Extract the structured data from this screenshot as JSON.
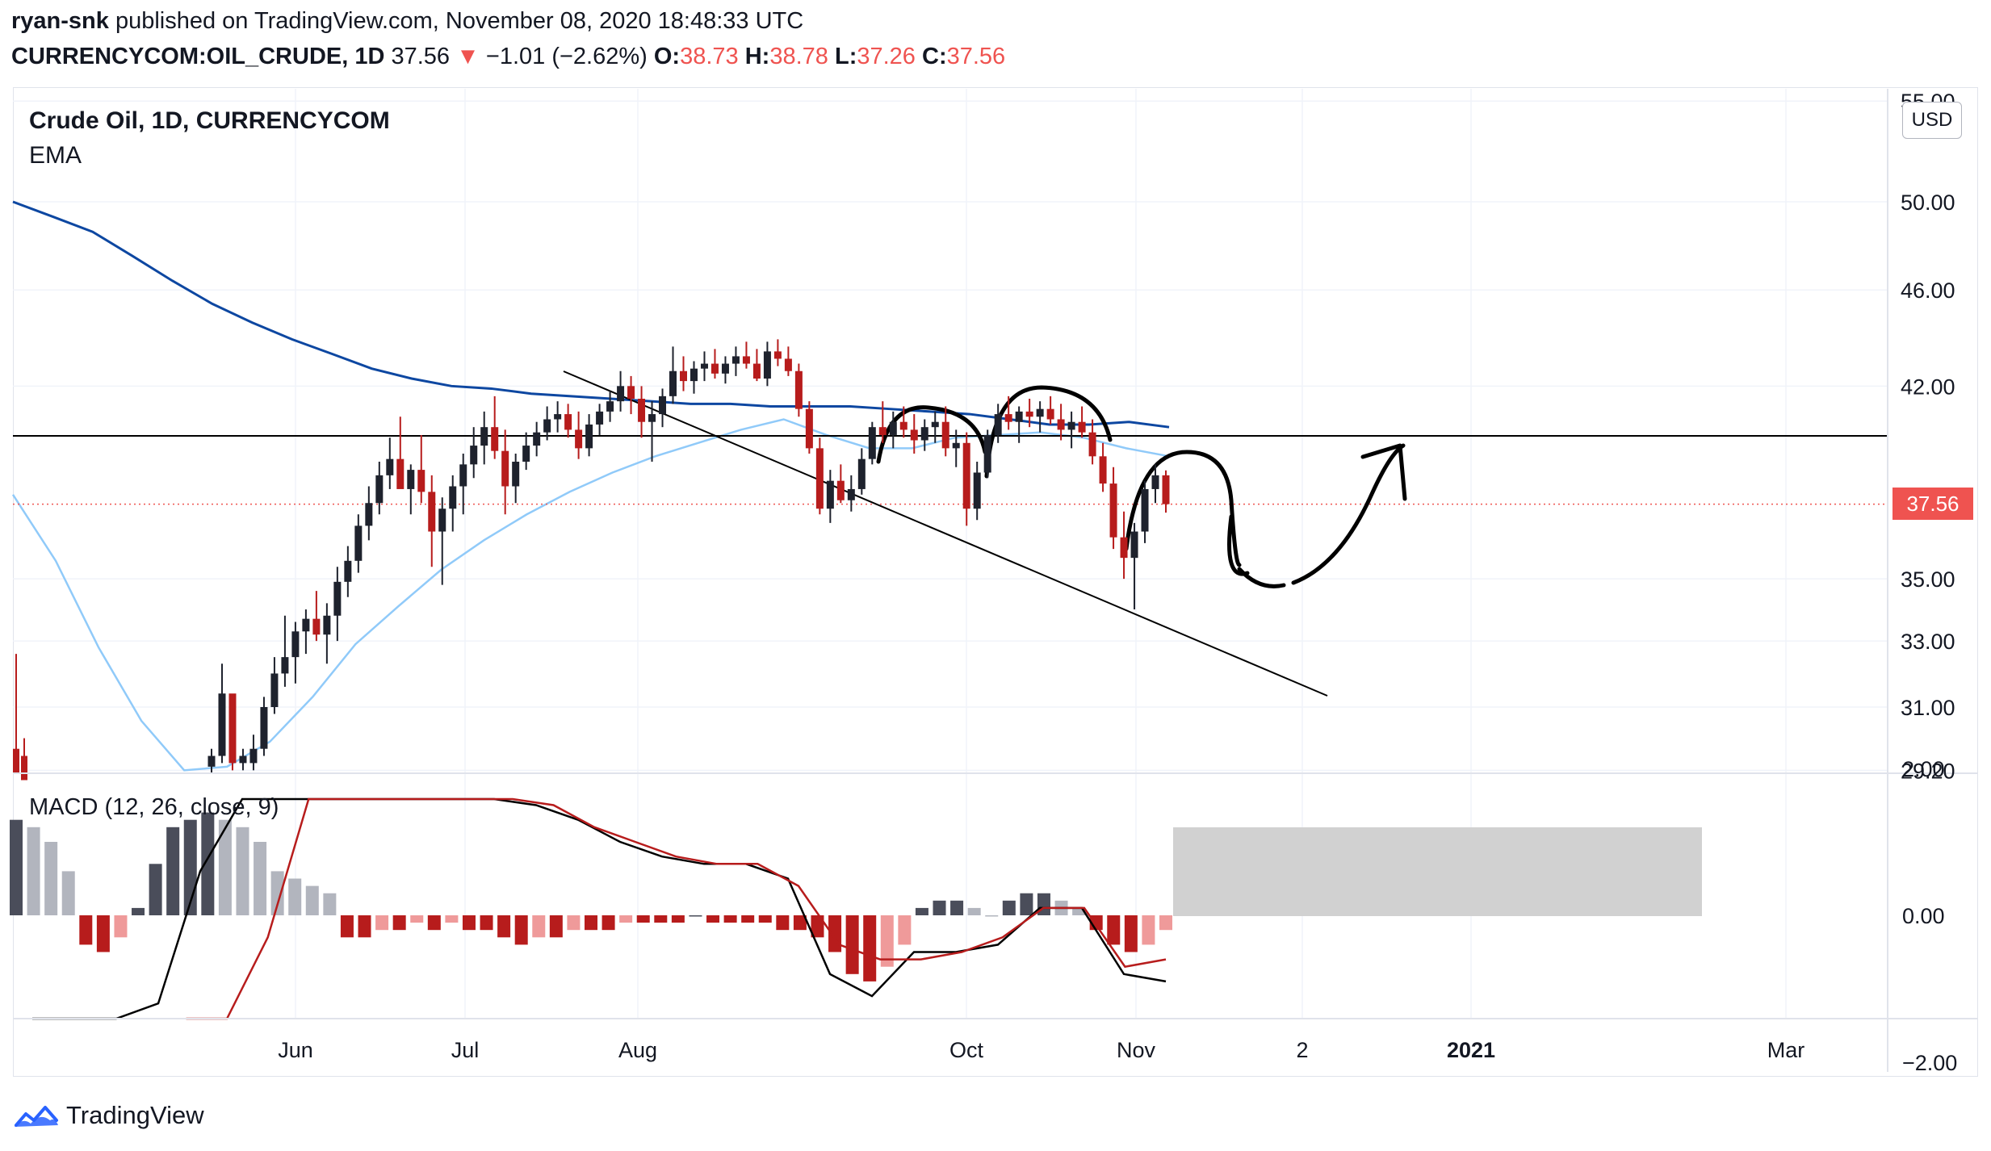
{
  "header": {
    "author": "ryan-snk",
    "published_text": "published on TradingView.com, November 08, 2020 18:48:33 UTC",
    "symbol": "CURRENCYCOM:OIL_CRUDE, 1D",
    "last": "37.56",
    "change_arrow": "▼",
    "change": "−1.01 (−2.62%)",
    "o_label": "O:",
    "o": "38.73",
    "h_label": "H:",
    "h": "38.78",
    "l_label": "L:",
    "l": "37.26",
    "c_label": "C:",
    "c": "37.56"
  },
  "legend": {
    "title": "Crude Oil, 1D, CURRENCYCOM",
    "ema": "EMA",
    "macd": "MACD (12, 26, close, 9)"
  },
  "currency": "USD",
  "price_tag": "37.56",
  "brand": "TradingView",
  "colors": {
    "up": "#1e222d",
    "down": "#b71c1c",
    "ema_long": "#0d47a1",
    "ema_short": "#90caf9",
    "macd_line": "#000000",
    "signal_line": "#b71c1c",
    "hist_pos_strong": "#4a4d5a",
    "hist_pos_weak": "#b2b5be",
    "hist_neg_strong": "#b71c1c",
    "hist_neg_weak": "#ef9a9a",
    "price_tag": "#ef5350"
  },
  "chart_data": [
    {
      "type": "candlestick",
      "title": "Crude Oil, 1D, CURRENCYCOM",
      "x_tick_labels": [
        "Jun",
        "Jul",
        "Aug",
        "Oct",
        "Nov",
        "2",
        "2021",
        "Mar"
      ],
      "y_tick_labels": [
        "55.00",
        "50.00",
        "46.00",
        "42.00",
        "35.00",
        "33.00",
        "31.00",
        "29.20"
      ],
      "y_scale": "log",
      "ylim": [
        29.2,
        55.0
      ],
      "series": [
        {
          "name": "EMA",
          "type": "line",
          "values": [
            50.0,
            49.3,
            48.6,
            47.5,
            46.4,
            45.4,
            44.6,
            43.9,
            43.3,
            42.7,
            42.3,
            42.0,
            41.9,
            41.7,
            41.6,
            41.5,
            41.4,
            41.3,
            41.3,
            41.2,
            41.2,
            41.2,
            41.1,
            41.0,
            40.9,
            40.7,
            40.5,
            40.5,
            40.6,
            40.4
          ]
        },
        {
          "name": "EMA (short)",
          "type": "line",
          "values": [
            37.9,
            35.6,
            32.8,
            30.6,
            29.2,
            29.3,
            30.0,
            31.3,
            32.9,
            34.1,
            35.3,
            36.3,
            37.2,
            38.0,
            38.7,
            39.3,
            39.8,
            40.3,
            40.7,
            40.1,
            39.6,
            39.6,
            40.0,
            40.1,
            40.2,
            40.0,
            39.6,
            39.3
          ]
        }
      ],
      "candles_ohlc": [
        [
          29.3,
          29.8,
          29.1,
          29.6
        ],
        [
          29.6,
          32.3,
          29.4,
          31.4
        ],
        [
          31.4,
          31.2,
          29.2,
          29.4
        ],
        [
          29.4,
          29.8,
          29.2,
          29.6
        ],
        [
          29.4,
          30.2,
          29.2,
          29.8
        ],
        [
          29.8,
          31.3,
          29.6,
          31.0
        ],
        [
          31.0,
          32.5,
          30.8,
          32.0
        ],
        [
          32.0,
          33.8,
          31.6,
          32.5
        ],
        [
          32.5,
          33.6,
          31.7,
          33.3
        ],
        [
          33.3,
          34.0,
          32.6,
          33.7
        ],
        [
          33.7,
          34.6,
          33.0,
          33.2
        ],
        [
          33.2,
          34.2,
          32.3,
          33.8
        ],
        [
          33.8,
          35.4,
          33.0,
          34.9
        ],
        [
          34.9,
          36.1,
          34.4,
          35.6
        ],
        [
          35.6,
          37.2,
          35.2,
          36.8
        ],
        [
          36.8,
          38.2,
          36.3,
          37.6
        ],
        [
          37.6,
          39.1,
          37.2,
          38.6
        ],
        [
          38.6,
          40.0,
          38.1,
          39.2
        ],
        [
          39.2,
          40.8,
          38.7,
          38.1
        ],
        [
          38.1,
          39.0,
          37.2,
          38.8
        ],
        [
          38.8,
          40.1,
          37.6,
          38.0
        ],
        [
          38.0,
          38.6,
          35.4,
          36.6
        ],
        [
          36.6,
          37.8,
          34.8,
          37.4
        ],
        [
          37.4,
          38.6,
          36.6,
          38.2
        ],
        [
          38.2,
          39.4,
          37.2,
          39.0
        ],
        [
          39.0,
          40.4,
          38.5,
          39.7
        ],
        [
          39.7,
          41.0,
          39.0,
          40.4
        ],
        [
          40.4,
          41.6,
          39.2,
          39.5
        ],
        [
          39.5,
          40.3,
          37.2,
          38.2
        ],
        [
          38.2,
          39.4,
          37.6,
          39.1
        ],
        [
          39.1,
          40.2,
          38.8,
          39.7
        ],
        [
          39.7,
          40.6,
          39.3,
          40.2
        ],
        [
          40.2,
          41.2,
          39.9,
          40.7
        ],
        [
          40.7,
          41.4,
          40.2,
          40.9
        ],
        [
          40.9,
          41.3,
          40.0,
          40.3
        ],
        [
          40.3,
          41.0,
          39.2,
          39.6
        ],
        [
          39.6,
          40.9,
          39.3,
          40.5
        ],
        [
          40.5,
          41.3,
          40.1,
          41.0
        ],
        [
          41.0,
          41.8,
          40.6,
          41.4
        ],
        [
          41.4,
          42.6,
          41.0,
          42.0
        ],
        [
          42.0,
          42.4,
          40.9,
          41.5
        ],
        [
          41.5,
          42.0,
          40.0,
          40.6
        ],
        [
          40.6,
          41.4,
          39.1,
          40.9
        ],
        [
          40.9,
          41.9,
          40.4,
          41.6
        ],
        [
          41.6,
          43.6,
          41.3,
          42.6
        ],
        [
          42.6,
          43.2,
          41.8,
          42.2
        ],
        [
          42.2,
          43.0,
          41.7,
          42.7
        ],
        [
          42.7,
          43.4,
          42.2,
          42.9
        ],
        [
          42.9,
          43.5,
          42.3,
          42.5
        ],
        [
          42.5,
          43.2,
          42.1,
          42.9
        ],
        [
          42.9,
          43.6,
          42.4,
          43.2
        ],
        [
          43.2,
          43.8,
          42.7,
          42.9
        ],
        [
          42.9,
          43.5,
          42.2,
          42.3
        ],
        [
          42.3,
          43.8,
          42.0,
          43.4
        ],
        [
          43.4,
          43.9,
          42.8,
          43.1
        ],
        [
          43.1,
          43.6,
          42.4,
          42.6
        ],
        [
          42.6,
          42.9,
          40.8,
          41.1
        ],
        [
          41.1,
          41.4,
          39.4,
          39.6
        ],
        [
          39.6,
          40.0,
          37.2,
          37.4
        ],
        [
          37.4,
          38.8,
          36.9,
          38.4
        ],
        [
          38.4,
          39.0,
          37.6,
          37.7
        ],
        [
          37.7,
          38.6,
          37.3,
          38.1
        ],
        [
          38.1,
          39.6,
          37.9,
          39.2
        ],
        [
          39.2,
          40.6,
          39.0,
          40.4
        ],
        [
          40.4,
          41.4,
          39.8,
          40.1
        ],
        [
          40.1,
          41.0,
          39.6,
          40.6
        ],
        [
          40.6,
          41.2,
          40.0,
          40.3
        ],
        [
          40.3,
          40.9,
          39.4,
          39.9
        ],
        [
          39.9,
          40.7,
          39.5,
          40.4
        ],
        [
          40.4,
          41.0,
          39.8,
          40.6
        ],
        [
          40.6,
          41.2,
          39.3,
          39.6
        ],
        [
          39.6,
          40.3,
          38.9,
          39.8
        ],
        [
          39.8,
          40.2,
          36.8,
          37.4
        ],
        [
          37.4,
          39.1,
          37.0,
          38.7
        ],
        [
          38.7,
          40.3,
          38.5,
          40.1
        ],
        [
          40.1,
          41.3,
          39.8,
          40.9
        ],
        [
          40.9,
          41.6,
          40.3,
          40.6
        ],
        [
          40.6,
          41.2,
          39.8,
          41.0
        ],
        [
          41.0,
          41.5,
          40.4,
          40.8
        ],
        [
          40.8,
          41.4,
          40.2,
          41.1
        ],
        [
          41.1,
          41.6,
          40.5,
          40.7
        ],
        [
          40.7,
          41.3,
          39.9,
          40.3
        ],
        [
          40.3,
          41.0,
          39.6,
          40.6
        ],
        [
          40.6,
          41.2,
          40.0,
          40.2
        ],
        [
          40.2,
          40.7,
          39.0,
          39.3
        ],
        [
          39.3,
          39.8,
          38.0,
          38.3
        ],
        [
          38.3,
          38.9,
          36.0,
          36.4
        ],
        [
          36.4,
          37.3,
          35.0,
          35.7
        ],
        [
          35.7,
          36.9,
          34.0,
          36.6
        ],
        [
          36.6,
          38.4,
          36.2,
          38.1
        ],
        [
          38.1,
          39.0,
          37.6,
          38.6
        ],
        [
          38.6,
          38.78,
          37.26,
          37.56
        ]
      ]
    },
    {
      "type": "macd",
      "title": "MACD (12, 26, close, 9)",
      "y_tick_labels": [
        "2.00",
        "0.00",
        "−2.00"
      ],
      "ylim": [
        -2.8,
        3.2
      ],
      "series": [
        {
          "name": "MACD",
          "values": [
            -2.7,
            -2.5,
            -2.9,
            -1.2,
            0.6,
            1.8,
            2.6,
            3.1,
            3.1,
            2.5,
            2.2,
            1.8,
            1.5,
            1.3,
            1.0,
            0.8,
            0.7,
            0.7,
            0.5,
            -0.8,
            -1.1,
            -0.5,
            -0.5,
            -0.4,
            0.1,
            0.1,
            -0.8,
            -0.9
          ]
        },
        {
          "name": "Signal",
          "values": [
            null,
            -2.9,
            -2.0,
            -0.3,
            1.6,
            2.6,
            2.8,
            2.5,
            2.1,
            1.8,
            1.5,
            1.2,
            1.0,
            0.8,
            0.7,
            0.7,
            0.4,
            -0.4,
            -0.6,
            -0.6,
            -0.5,
            -0.3,
            0.1,
            0.1,
            -0.7,
            -0.6
          ]
        },
        {
          "name": "Histogram",
          "values": [
            1.3,
            1.2,
            1.0,
            0.6,
            -0.4,
            -0.5,
            -0.3,
            0.1,
            0.7,
            1.2,
            1.3,
            1.4,
            1.3,
            1.2,
            1.0,
            0.6,
            0.5,
            0.4,
            0.3,
            -0.3,
            -0.3,
            -0.2,
            -0.2,
            -0.1,
            -0.2,
            -0.1,
            -0.2,
            -0.2,
            -0.3,
            -0.4,
            -0.3,
            -0.3,
            -0.2,
            -0.2,
            -0.2,
            -0.1,
            -0.1,
            -0.1,
            -0.1,
            0.0,
            -0.1,
            -0.1,
            -0.1,
            -0.1,
            -0.2,
            -0.2,
            -0.3,
            -0.5,
            -0.8,
            -0.9,
            -0.7,
            -0.4,
            0.1,
            0.2,
            0.2,
            0.1,
            0.0,
            0.2,
            0.3,
            0.3,
            0.2,
            0.1,
            -0.2,
            -0.4,
            -0.5,
            -0.4,
            -0.2
          ]
        }
      ]
    }
  ]
}
